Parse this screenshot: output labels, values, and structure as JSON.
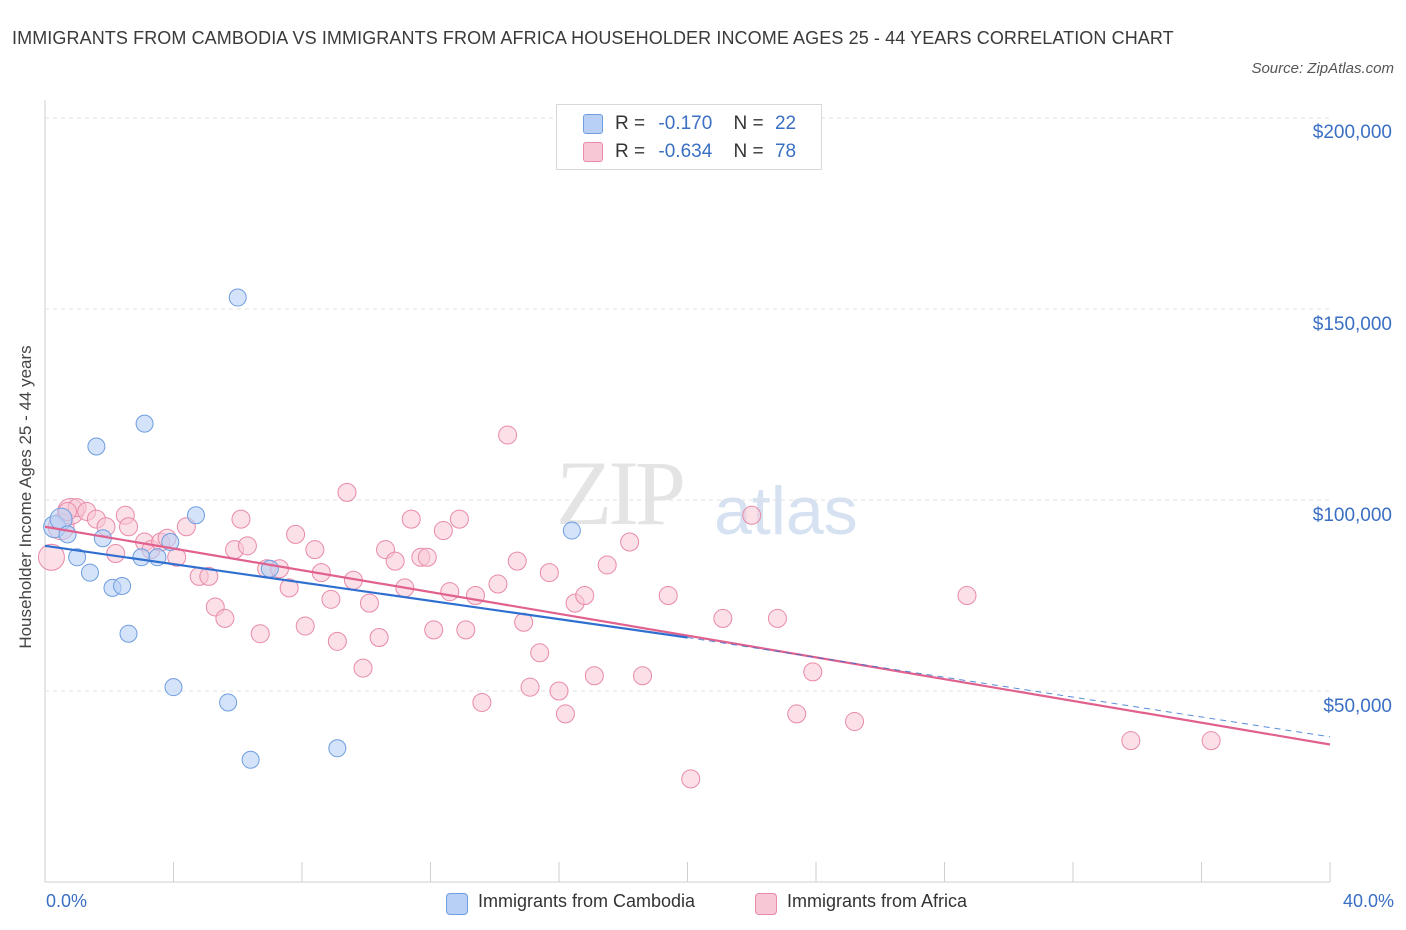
{
  "header": {
    "title": "IMMIGRANTS FROM CAMBODIA VS IMMIGRANTS FROM AFRICA HOUSEHOLDER INCOME AGES 25 - 44 YEARS CORRELATION CHART",
    "source": "Source: ZipAtlas.com"
  },
  "watermark": {
    "zip": "ZIP",
    "atlas": "atlas"
  },
  "legend_top": {
    "cambodia": {
      "r_label": "R =",
      "r_value": "-0.170",
      "n_label": "N =",
      "n_value": "22"
    },
    "africa": {
      "r_label": "R =",
      "r_value": "-0.634",
      "n_label": "N =",
      "n_value": "78"
    }
  },
  "legend_bottom": {
    "cambodia": "Immigrants from Cambodia",
    "africa": "Immigrants from Africa"
  },
  "axis": {
    "x_min_label": "0.0%",
    "x_max_label": "40.0%",
    "y_label": "Householder Income Ages 25 - 44 years",
    "y_ticks": [
      "$200,000",
      "$150,000",
      "$100,000",
      "$50,000"
    ]
  },
  "colors": {
    "cambodia_fill": "#b8d0f5",
    "cambodia_stroke": "#6f9de0",
    "cambodia_line": "#2f6fd0",
    "africa_fill": "#f8c7d6",
    "africa_stroke": "#e88aa8",
    "africa_line": "#e0608e",
    "tick_text": "#3a6fc4"
  },
  "chart_data": {
    "type": "scatter",
    "x_unit": "percent",
    "xlim": [
      0,
      40
    ],
    "ylim": [
      0,
      200000
    ],
    "grid": true,
    "legend_position": "top-center",
    "series": [
      {
        "name": "Immigrants from Cambodia",
        "points": [
          [
            0.3,
            93000
          ],
          [
            0.5,
            95000
          ],
          [
            0.7,
            91000
          ],
          [
            1.0,
            85000
          ],
          [
            1.4,
            81000
          ],
          [
            1.8,
            90000
          ],
          [
            2.1,
            77000
          ],
          [
            2.4,
            77500
          ],
          [
            2.6,
            65000
          ],
          [
            3.0,
            85000
          ],
          [
            3.1,
            120000
          ],
          [
            3.5,
            85000
          ],
          [
            3.9,
            89000
          ],
          [
            4.0,
            51000
          ],
          [
            4.7,
            96000
          ],
          [
            5.7,
            47000
          ],
          [
            6.0,
            153000
          ],
          [
            6.4,
            32000
          ],
          [
            7.0,
            82000
          ],
          [
            9.1,
            35000
          ],
          [
            16.4,
            92000
          ],
          [
            1.6,
            114000
          ]
        ],
        "trend": {
          "x": [
            0,
            20
          ],
          "y": [
            88000,
            64000
          ],
          "dashed_extension_to_x": 40,
          "dashed_end_y": 38000
        }
      },
      {
        "name": "Immigrants from Africa",
        "points": [
          [
            0.2,
            85000
          ],
          [
            0.5,
            93000
          ],
          [
            0.8,
            97000
          ],
          [
            1.0,
            98000
          ],
          [
            1.3,
            97000
          ],
          [
            1.6,
            95000
          ],
          [
            1.9,
            93000
          ],
          [
            2.2,
            86000
          ],
          [
            2.5,
            96000
          ],
          [
            2.6,
            93000
          ],
          [
            3.1,
            89000
          ],
          [
            3.3,
            87000
          ],
          [
            3.6,
            89000
          ],
          [
            3.8,
            90000
          ],
          [
            4.1,
            85000
          ],
          [
            4.4,
            93000
          ],
          [
            4.8,
            80000
          ],
          [
            5.1,
            80000
          ],
          [
            5.3,
            72000
          ],
          [
            5.6,
            69000
          ],
          [
            5.9,
            87000
          ],
          [
            6.1,
            95000
          ],
          [
            6.3,
            88000
          ],
          [
            6.7,
            65000
          ],
          [
            6.9,
            82000
          ],
          [
            7.3,
            82000
          ],
          [
            7.6,
            77000
          ],
          [
            7.8,
            91000
          ],
          [
            8.1,
            67000
          ],
          [
            8.4,
            87000
          ],
          [
            8.6,
            81000
          ],
          [
            8.9,
            74000
          ],
          [
            9.1,
            63000
          ],
          [
            9.4,
            102000
          ],
          [
            9.6,
            79000
          ],
          [
            9.9,
            56000
          ],
          [
            10.1,
            73000
          ],
          [
            10.4,
            64000
          ],
          [
            10.6,
            87000
          ],
          [
            10.9,
            84000
          ],
          [
            11.2,
            77000
          ],
          [
            11.4,
            95000
          ],
          [
            11.7,
            85000
          ],
          [
            11.9,
            85000
          ],
          [
            12.1,
            66000
          ],
          [
            12.4,
            92000
          ],
          [
            12.6,
            76000
          ],
          [
            12.9,
            95000
          ],
          [
            13.1,
            66000
          ],
          [
            13.4,
            75000
          ],
          [
            13.6,
            47000
          ],
          [
            14.1,
            78000
          ],
          [
            14.4,
            117000
          ],
          [
            14.7,
            84000
          ],
          [
            14.9,
            68000
          ],
          [
            15.1,
            51000
          ],
          [
            15.4,
            60000
          ],
          [
            15.7,
            81000
          ],
          [
            16.0,
            50000
          ],
          [
            16.2,
            44000
          ],
          [
            16.5,
            73000
          ],
          [
            16.8,
            75000
          ],
          [
            17.1,
            54000
          ],
          [
            17.5,
            83000
          ],
          [
            18.2,
            89000
          ],
          [
            18.6,
            54000
          ],
          [
            19.4,
            75000
          ],
          [
            20.1,
            27000
          ],
          [
            21.1,
            69000
          ],
          [
            22.0,
            96000
          ],
          [
            22.8,
            69000
          ],
          [
            23.4,
            44000
          ],
          [
            23.9,
            55000
          ],
          [
            25.2,
            42000
          ],
          [
            28.7,
            75000
          ],
          [
            33.8,
            37000
          ],
          [
            36.3,
            37000
          ],
          [
            0.7,
            97000
          ]
        ],
        "trend": {
          "x": [
            0,
            40
          ],
          "y": [
            93000,
            36000
          ]
        }
      }
    ]
  }
}
